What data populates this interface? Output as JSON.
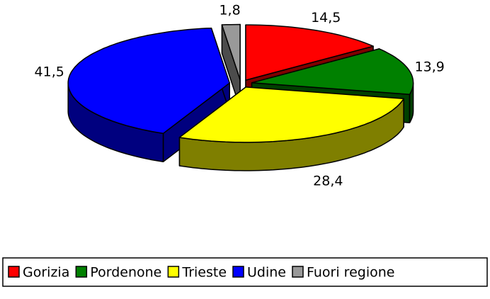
{
  "chart_data": {
    "type": "pie3d",
    "categories": [
      "Gorizia",
      "Pordenone",
      "Trieste",
      "Udine",
      "Fuori regione"
    ],
    "values": [
      14.5,
      13.9,
      28.4,
      41.5,
      1.8
    ],
    "value_labels": [
      "14,5",
      "13,9",
      "28,4",
      "41,5",
      "1,8"
    ],
    "colors": [
      "#ff0000",
      "#008000",
      "#ffff00",
      "#0000ff",
      "#999999"
    ],
    "legend": "bottom"
  }
}
